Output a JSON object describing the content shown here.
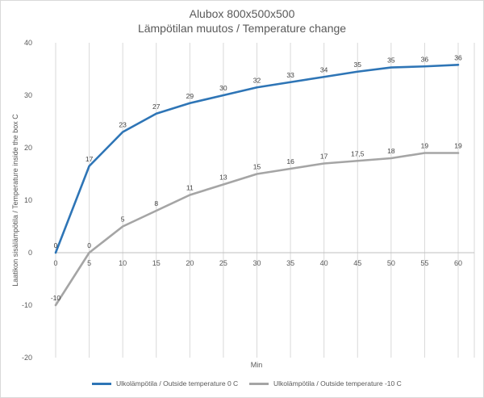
{
  "chart_data": {
    "type": "line",
    "title": "Alubox 800x500x500",
    "subtitle": "Lämpötilan muutos / Temperature change",
    "xlabel": "Min",
    "ylabel": "Laatikon sisälämpötila / Temperature inside the box  C",
    "x": [
      0,
      5,
      10,
      15,
      20,
      25,
      30,
      35,
      40,
      45,
      50,
      55,
      60
    ],
    "ylim": [
      -20,
      40
    ],
    "yticks": [
      -20,
      -10,
      0,
      10,
      20,
      30,
      40
    ],
    "grid": "vertical",
    "legend": "bottom",
    "series": [
      {
        "name": "Ulkolämpötila / Outside temperature 0 C",
        "color": "#2e75b6",
        "values": [
          0,
          16.5,
          23,
          26.5,
          28.5,
          30,
          31.5,
          32.5,
          33.5,
          34.5,
          35.3,
          35.5,
          35.8
        ],
        "labels": [
          "0",
          "17",
          "23",
          "27",
          "29",
          "30",
          "32",
          "33",
          "34",
          "35",
          "35",
          "36",
          "36"
        ]
      },
      {
        "name": "Ulkolämpötila / Outside temperature -10 C",
        "color": "#a5a5a5",
        "values": [
          -10,
          0,
          5,
          8,
          11,
          13,
          15,
          16,
          17,
          17.5,
          18,
          19,
          19
        ],
        "labels": [
          "-10",
          "0",
          "5",
          "8",
          "11",
          "13",
          "15",
          "16",
          "17",
          "17,5",
          "18",
          "19",
          "19"
        ]
      }
    ]
  }
}
